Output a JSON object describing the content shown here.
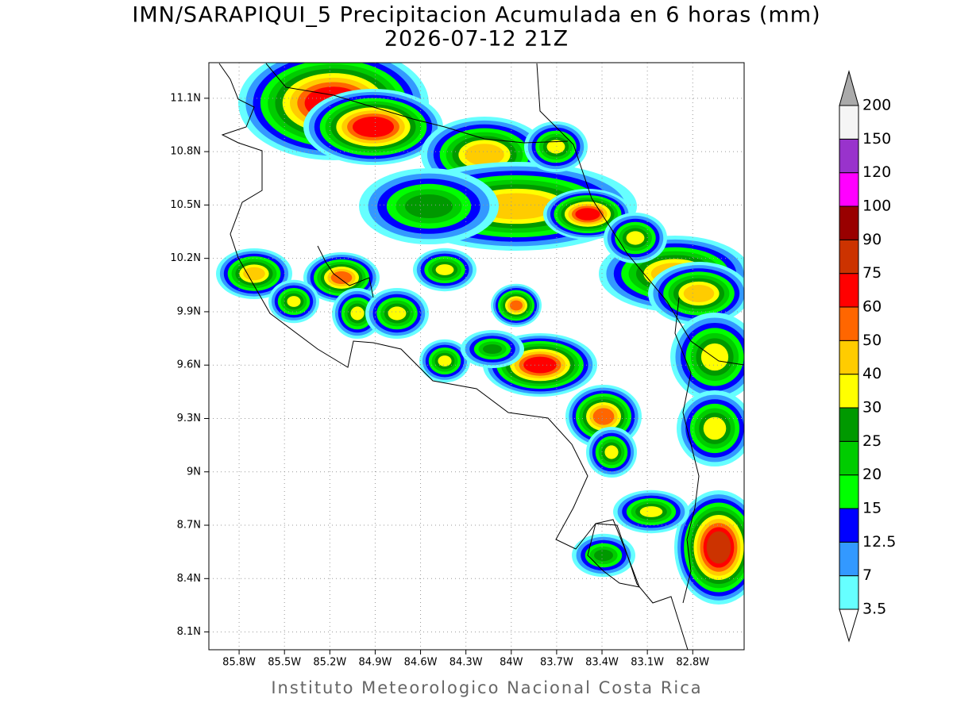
{
  "title": "IMN/SARAPIQUI_5 Precipitacion Acumulada en 6 horas (mm)",
  "subtitle": "2026-07-12 21Z",
  "footer": "Instituto Meteorologico Nacional Costa Rica",
  "map": {
    "xlim": [
      -86.0,
      -82.46
    ],
    "ylim": [
      8.0,
      11.3
    ],
    "grid": true,
    "xticks": [
      {
        "value": -85.8,
        "label": "85.8W"
      },
      {
        "value": -85.5,
        "label": "85.5W"
      },
      {
        "value": -85.2,
        "label": "85.2W"
      },
      {
        "value": -84.9,
        "label": "84.9W"
      },
      {
        "value": -84.6,
        "label": "84.6W"
      },
      {
        "value": -84.3,
        "label": "84.3W"
      },
      {
        "value": -84.0,
        "label": "84W"
      },
      {
        "value": -83.7,
        "label": "83.7W"
      },
      {
        "value": -83.4,
        "label": "83.4W"
      },
      {
        "value": -83.1,
        "label": "83.1W"
      },
      {
        "value": -82.8,
        "label": "82.8W"
      }
    ],
    "yticks": [
      {
        "value": 8.1,
        "label": "8.1N"
      },
      {
        "value": 8.4,
        "label": "8.4N"
      },
      {
        "value": 8.7,
        "label": "8.7N"
      },
      {
        "value": 9.0,
        "label": "9N"
      },
      {
        "value": 9.3,
        "label": "9.3N"
      },
      {
        "value": 9.6,
        "label": "9.6N"
      },
      {
        "value": 9.9,
        "label": "9.9N"
      },
      {
        "value": 10.2,
        "label": "10.2N"
      },
      {
        "value": 10.5,
        "label": "10.5N"
      },
      {
        "value": 10.8,
        "label": "10.8N"
      },
      {
        "value": 11.1,
        "label": "11.1N"
      }
    ]
  },
  "legend": {
    "levels": [
      3.5,
      7,
      12.5,
      15,
      20,
      25,
      30,
      40,
      50,
      60,
      75,
      90,
      100,
      120,
      150,
      200
    ],
    "colors": [
      "#66ffff",
      "#3399ff",
      "#0000ff",
      "#00ff00",
      "#00cc00",
      "#009900",
      "#ffff00",
      "#ffcc00",
      "#ff6600",
      "#ff0000",
      "#cc3300",
      "#990000",
      "#ff00ff",
      "#9933cc",
      "#f5f5f5"
    ],
    "over_color": "#aaaaaa",
    "under_color": "#ffffff"
  }
}
